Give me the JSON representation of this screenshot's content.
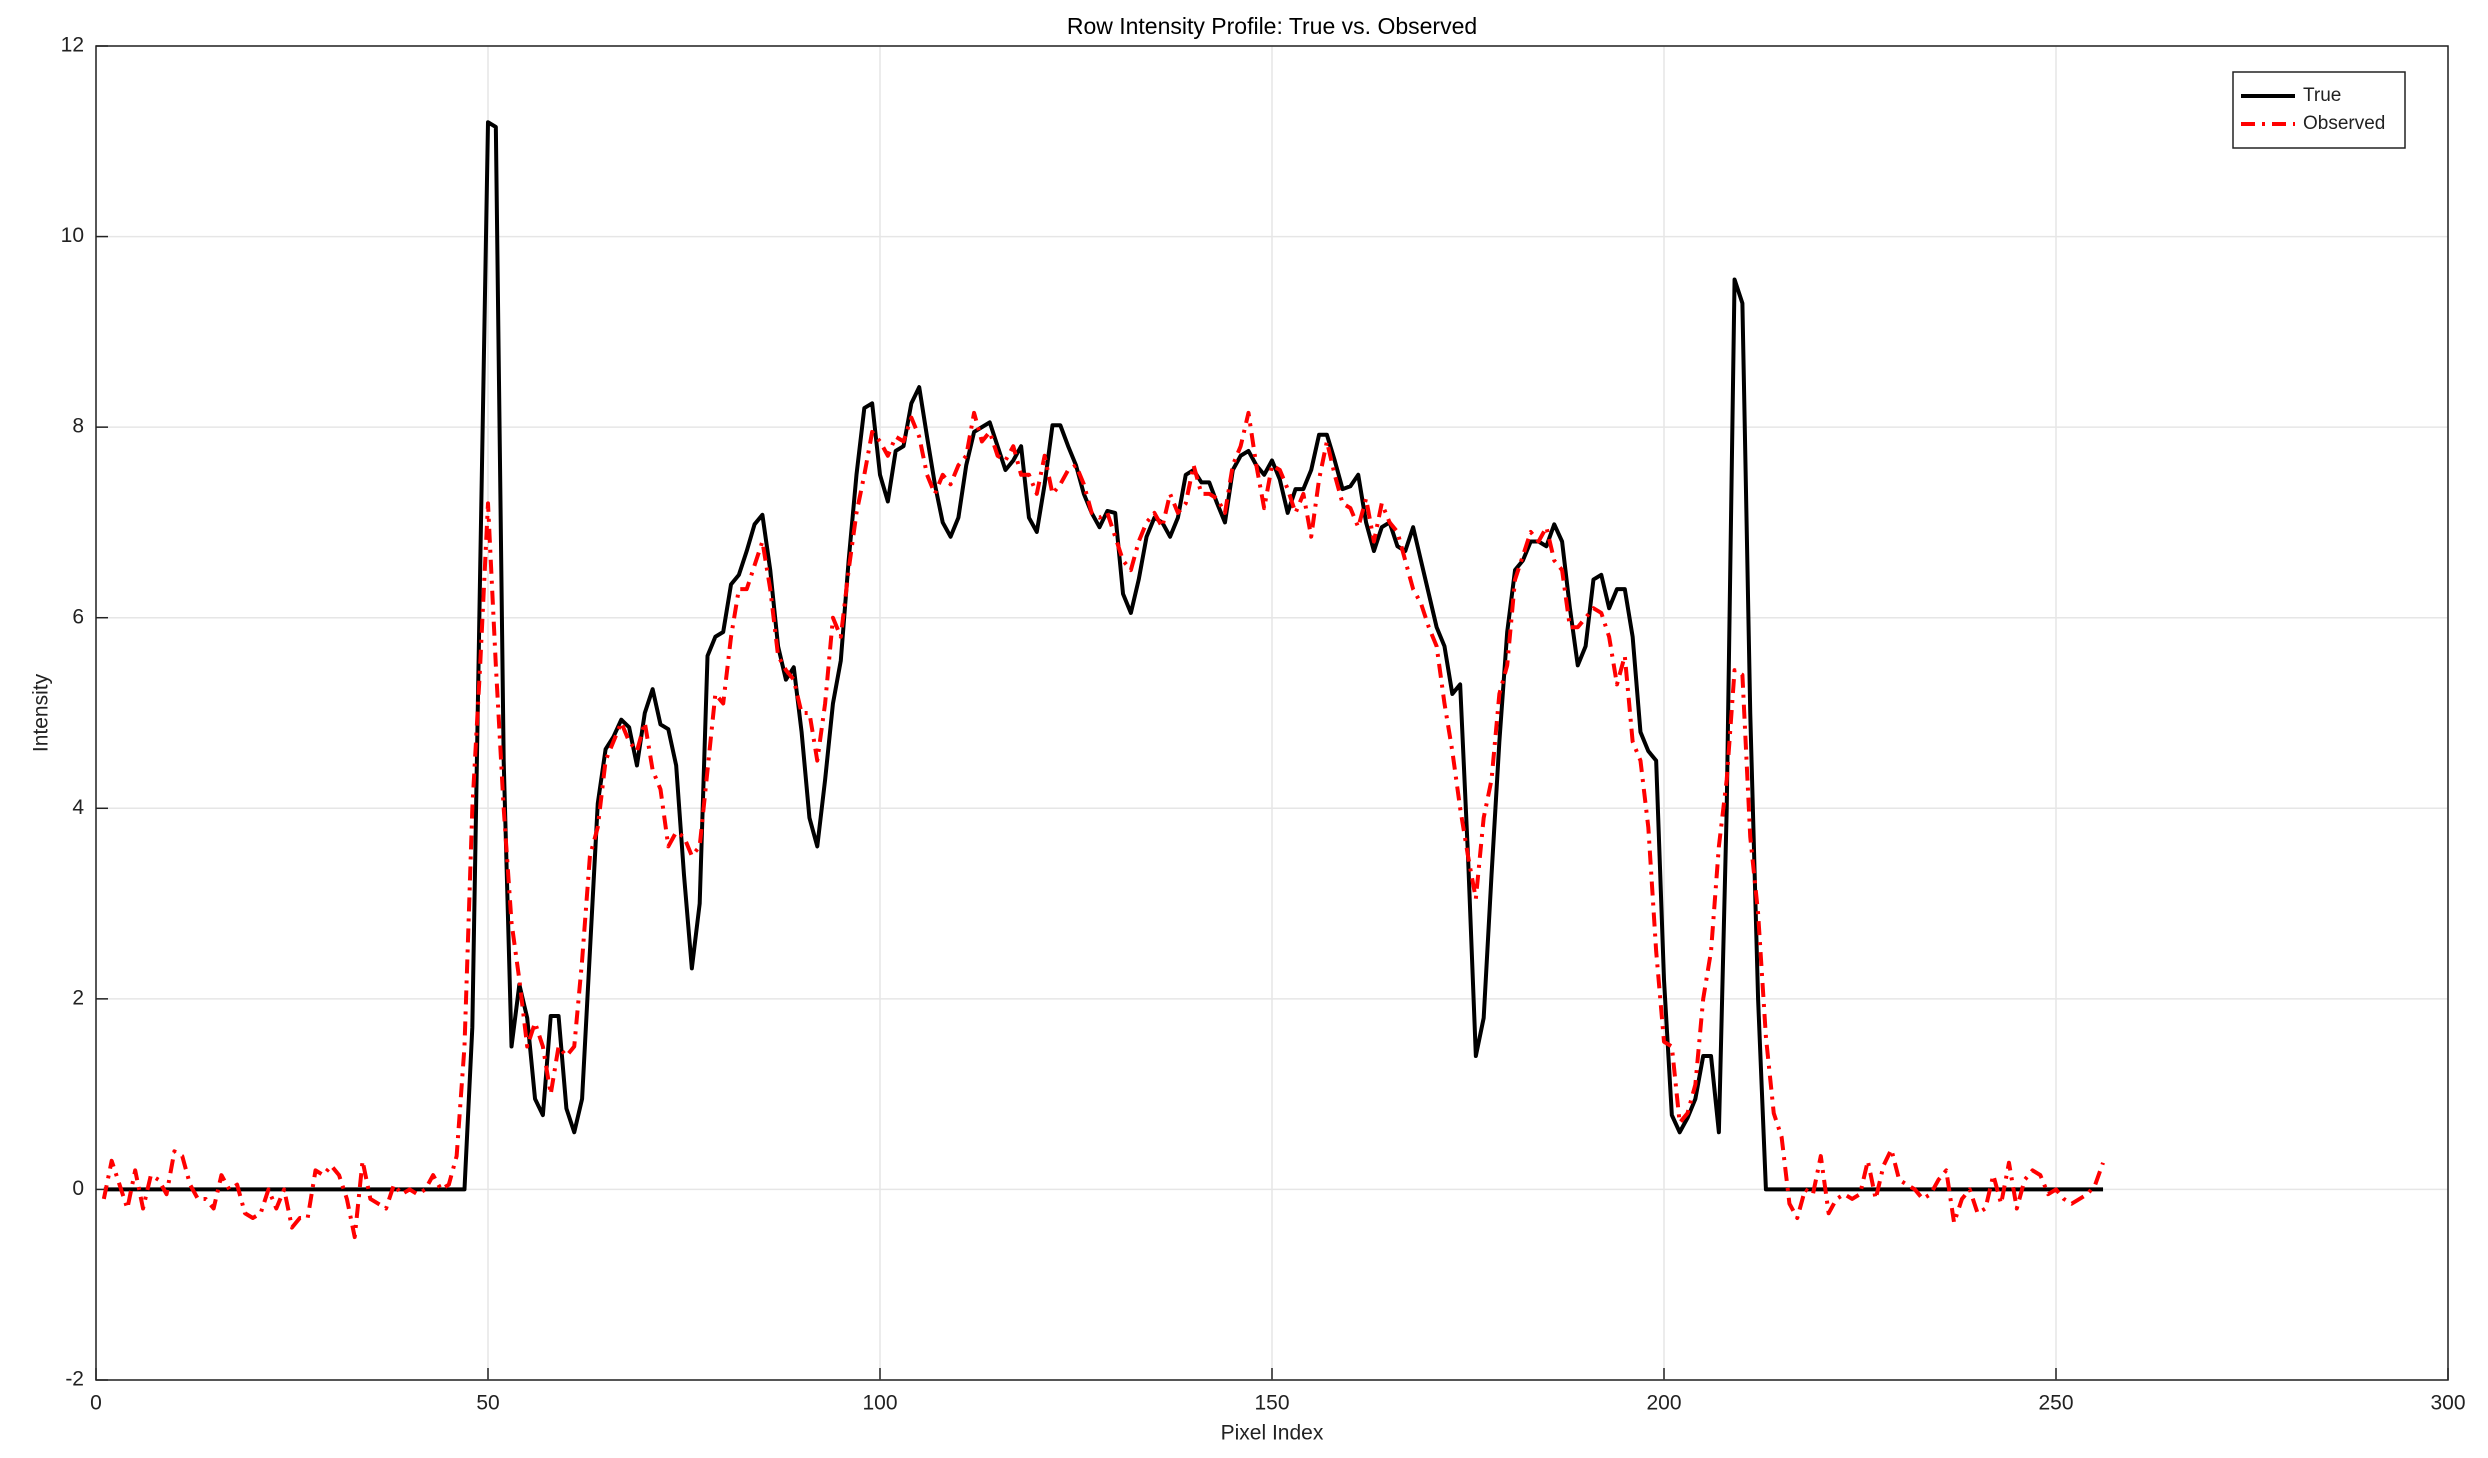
{
  "chart_data": {
    "type": "line",
    "title": "Row Intensity Profile: True vs. Observed",
    "xlabel": "Pixel Index",
    "ylabel": "Intensity",
    "xlim": [
      0,
      300
    ],
    "ylim": [
      -2,
      12
    ],
    "xticks": [
      0,
      50,
      100,
      150,
      200,
      250,
      300
    ],
    "yticks": [
      -2,
      0,
      2,
      4,
      6,
      8,
      10,
      12
    ],
    "grid": true,
    "legend": "upper right",
    "x": [
      1,
      2,
      3,
      4,
      5,
      6,
      7,
      8,
      9,
      10,
      11,
      12,
      13,
      14,
      15,
      16,
      17,
      18,
      19,
      20,
      21,
      22,
      23,
      24,
      25,
      26,
      27,
      28,
      29,
      30,
      31,
      32,
      33,
      34,
      35,
      36,
      37,
      38,
      39,
      40,
      41,
      42,
      43,
      44,
      45,
      46,
      47,
      48,
      49,
      50,
      51,
      52,
      53,
      54,
      55,
      56,
      57,
      58,
      59,
      60,
      61,
      62,
      63,
      64,
      65,
      66,
      67,
      68,
      69,
      70,
      71,
      72,
      73,
      74,
      75,
      76,
      77,
      78,
      79,
      80,
      81,
      82,
      83,
      84,
      85,
      86,
      87,
      88,
      89,
      90,
      91,
      92,
      93,
      94,
      95,
      96,
      97,
      98,
      99,
      100,
      101,
      102,
      103,
      104,
      105,
      106,
      107,
      108,
      109,
      110,
      111,
      112,
      113,
      114,
      115,
      116,
      117,
      118,
      119,
      120,
      121,
      122,
      123,
      124,
      125,
      126,
      127,
      128,
      129,
      130,
      131,
      132,
      133,
      134,
      135,
      136,
      137,
      138,
      139,
      140,
      141,
      142,
      143,
      144,
      145,
      146,
      147,
      148,
      149,
      150,
      151,
      152,
      153,
      154,
      155,
      156,
      157,
      158,
      159,
      160,
      161,
      162,
      163,
      164,
      165,
      166,
      167,
      168,
      169,
      170,
      171,
      172,
      173,
      174,
      175,
      176,
      177,
      178,
      179,
      180,
      181,
      182,
      183,
      184,
      185,
      186,
      187,
      188,
      189,
      190,
      191,
      192,
      193,
      194,
      195,
      196,
      197,
      198,
      199,
      200,
      201,
      202,
      203,
      204,
      205,
      206,
      207,
      208,
      209,
      210,
      211,
      212,
      213,
      214,
      215,
      216,
      217,
      218,
      219,
      220,
      221,
      222,
      223,
      224,
      225,
      226,
      227,
      228,
      229,
      230,
      231,
      232,
      233,
      234,
      235,
      236,
      237,
      238,
      239,
      240,
      241,
      242,
      243,
      244,
      245,
      246,
      247,
      248,
      249,
      250,
      251,
      252,
      253,
      254,
      255,
      256
    ],
    "series": [
      {
        "name": "True",
        "color": "#000000",
        "style": "solid",
        "values": [
          0,
          0,
          0,
          0,
          0,
          0,
          0,
          0,
          0,
          0,
          0,
          0,
          0,
          0,
          0,
          0,
          0,
          0,
          0,
          0,
          0,
          0,
          0,
          0,
          0,
          0,
          0,
          0,
          0,
          0,
          0,
          0,
          0,
          0,
          0,
          0,
          0,
          0,
          0,
          0,
          0,
          0,
          0,
          0,
          0,
          0,
          0,
          1.7,
          6.5,
          11.2,
          11.15,
          4.5,
          1.5,
          2.15,
          1.8,
          0.95,
          0.78,
          1.82,
          1.82,
          0.85,
          0.6,
          0.95,
          2.5,
          4.05,
          4.62,
          4.75,
          4.93,
          4.85,
          4.45,
          5,
          5.25,
          4.88,
          4.83,
          4.45,
          3.3,
          2.32,
          3,
          5.6,
          5.8,
          5.85,
          6.35,
          6.45,
          6.7,
          6.98,
          7.08,
          6.5,
          5.7,
          5.35,
          5.48,
          4.8,
          3.9,
          3.6,
          4.3,
          5.1,
          5.55,
          6.6,
          7.5,
          8.2,
          8.25,
          7.5,
          7.22,
          7.75,
          7.8,
          8.25,
          8.42,
          7.9,
          7.4,
          7,
          6.85,
          7.05,
          7.6,
          7.95,
          8,
          8.05,
          7.8,
          7.55,
          7.65,
          7.8,
          7.05,
          6.9,
          7.4,
          8.02,
          8.02,
          7.8,
          7.6,
          7.3,
          7.1,
          6.95,
          7.12,
          7.1,
          6.25,
          6.05,
          6.4,
          6.85,
          7.05,
          7,
          6.85,
          7.05,
          7.5,
          7.55,
          7.42,
          7.42,
          7.2,
          7,
          7.55,
          7.7,
          7.75,
          7.6,
          7.5,
          7.65,
          7.45,
          7.1,
          7.35,
          7.35,
          7.55,
          7.92,
          7.92,
          7.65,
          7.35,
          7.38,
          7.5,
          7,
          6.7,
          6.95,
          7,
          6.75,
          6.7,
          6.95,
          6.6,
          6.25,
          5.9,
          5.7,
          5.2,
          5.3,
          3.5,
          1.4,
          1.8,
          3.3,
          4.7,
          5.85,
          6.5,
          6.6,
          6.8,
          6.8,
          6.75,
          6.98,
          6.8,
          6.1,
          5.5,
          5.7,
          6.4,
          6.45,
          6.1,
          6.3,
          6.3,
          5.8,
          4.8,
          4.6,
          4.5,
          2.2,
          0.78,
          0.6,
          0.75,
          0.95,
          1.4,
          1.4,
          0.6,
          4,
          9.55,
          9.3,
          5,
          2,
          0,
          0,
          0,
          0,
          0,
          0,
          0,
          0,
          0,
          0,
          0,
          0,
          0,
          0,
          0,
          0,
          0,
          0,
          0,
          0,
          0,
          0,
          0,
          0,
          0,
          0,
          0,
          0,
          0,
          0,
          0,
          0,
          0,
          0,
          0,
          0,
          0,
          0,
          0,
          0,
          0,
          0,
          0,
          0
        ]
      },
      {
        "name": "Observed",
        "color": "#ff0000",
        "style": "dashdot",
        "values": [
          -0.1,
          0.3,
          0.05,
          -0.2,
          0.2,
          -0.2,
          0.15,
          0.1,
          -0.05,
          0.4,
          0.35,
          0.05,
          -0.1,
          -0.1,
          -0.2,
          0.15,
          0,
          0.05,
          -0.25,
          -0.3,
          -0.25,
          0,
          -0.2,
          0,
          -0.4,
          -0.3,
          -0.3,
          0.2,
          0.15,
          0.25,
          0.15,
          -0.1,
          -0.5,
          0.3,
          -0.1,
          -0.15,
          -0.2,
          0.05,
          -0.05,
          0,
          -0.05,
          0,
          0.15,
          0,
          0.05,
          0.35,
          1.5,
          4,
          5.5,
          7.2,
          5.5,
          4,
          2.8,
          2.2,
          1.5,
          1.75,
          1.5,
          1,
          1.5,
          1.4,
          1.5,
          2.4,
          3.5,
          3.8,
          4.5,
          4.7,
          4.9,
          4.7,
          4.6,
          4.9,
          4.4,
          4.2,
          3.6,
          3.75,
          3.7,
          3.5,
          3.6,
          4.4,
          5.2,
          5.1,
          5.8,
          6.3,
          6.3,
          6.55,
          6.8,
          6.3,
          5.6,
          5.45,
          5.35,
          5,
          5,
          4.5,
          5.1,
          6,
          5.8,
          6.5,
          7.1,
          7.5,
          7.95,
          7.85,
          7.7,
          7.9,
          7.85,
          8.1,
          7.9,
          7.5,
          7.3,
          7.5,
          7.4,
          7.6,
          7.7,
          8.15,
          7.85,
          7.95,
          7.7,
          7.65,
          7.8,
          7.5,
          7.5,
          7.3,
          7.7,
          7.3,
          7.4,
          7.55,
          7.6,
          7.4,
          7.1,
          7.05,
          7.1,
          6.85,
          6.6,
          6.5,
          6.8,
          7,
          7.1,
          6.95,
          7.3,
          7.1,
          7.2,
          7.6,
          7.3,
          7.3,
          7.25,
          7.1,
          7.6,
          7.8,
          8.15,
          7.6,
          7.15,
          7.6,
          7.55,
          7.35,
          7.1,
          7.3,
          6.85,
          7.45,
          7.85,
          7.5,
          7.2,
          7.15,
          6.95,
          7.25,
          6.8,
          7.2,
          7,
          6.9,
          6.6,
          6.3,
          6.15,
          5.9,
          5.7,
          5.1,
          4.6,
          4,
          3.5,
          3.05,
          3.9,
          4.3,
          5.2,
          5.5,
          6.4,
          6.65,
          6.9,
          6.8,
          6.95,
          6.6,
          6.5,
          5.9,
          5.9,
          6,
          6.1,
          6.05,
          5.8,
          5.3,
          5.6,
          4.7,
          4.5,
          3.8,
          2.5,
          1.55,
          1.5,
          0.7,
          0.8,
          1.1,
          2,
          2.5,
          3.6,
          4.3,
          5.45,
          5.4,
          3.7,
          2.9,
          1.6,
          0.8,
          0.55,
          -0.15,
          -0.3,
          0,
          -0.05,
          0.35,
          -0.25,
          -0.1,
          -0.05,
          -0.1,
          -0.05,
          0.3,
          -0.1,
          0.25,
          0.42,
          0.1,
          0.05,
          0,
          -0.1,
          -0.05,
          0.1,
          0.2,
          -0.35,
          -0.1,
          0,
          -0.25,
          -0.2,
          0.15,
          -0.15,
          0.28,
          -0.2,
          0.1,
          0.2,
          0.15,
          -0.05,
          0,
          -0.1,
          -0.15,
          -0.1,
          -0.05,
          0.05,
          0.28
        ]
      }
    ]
  }
}
